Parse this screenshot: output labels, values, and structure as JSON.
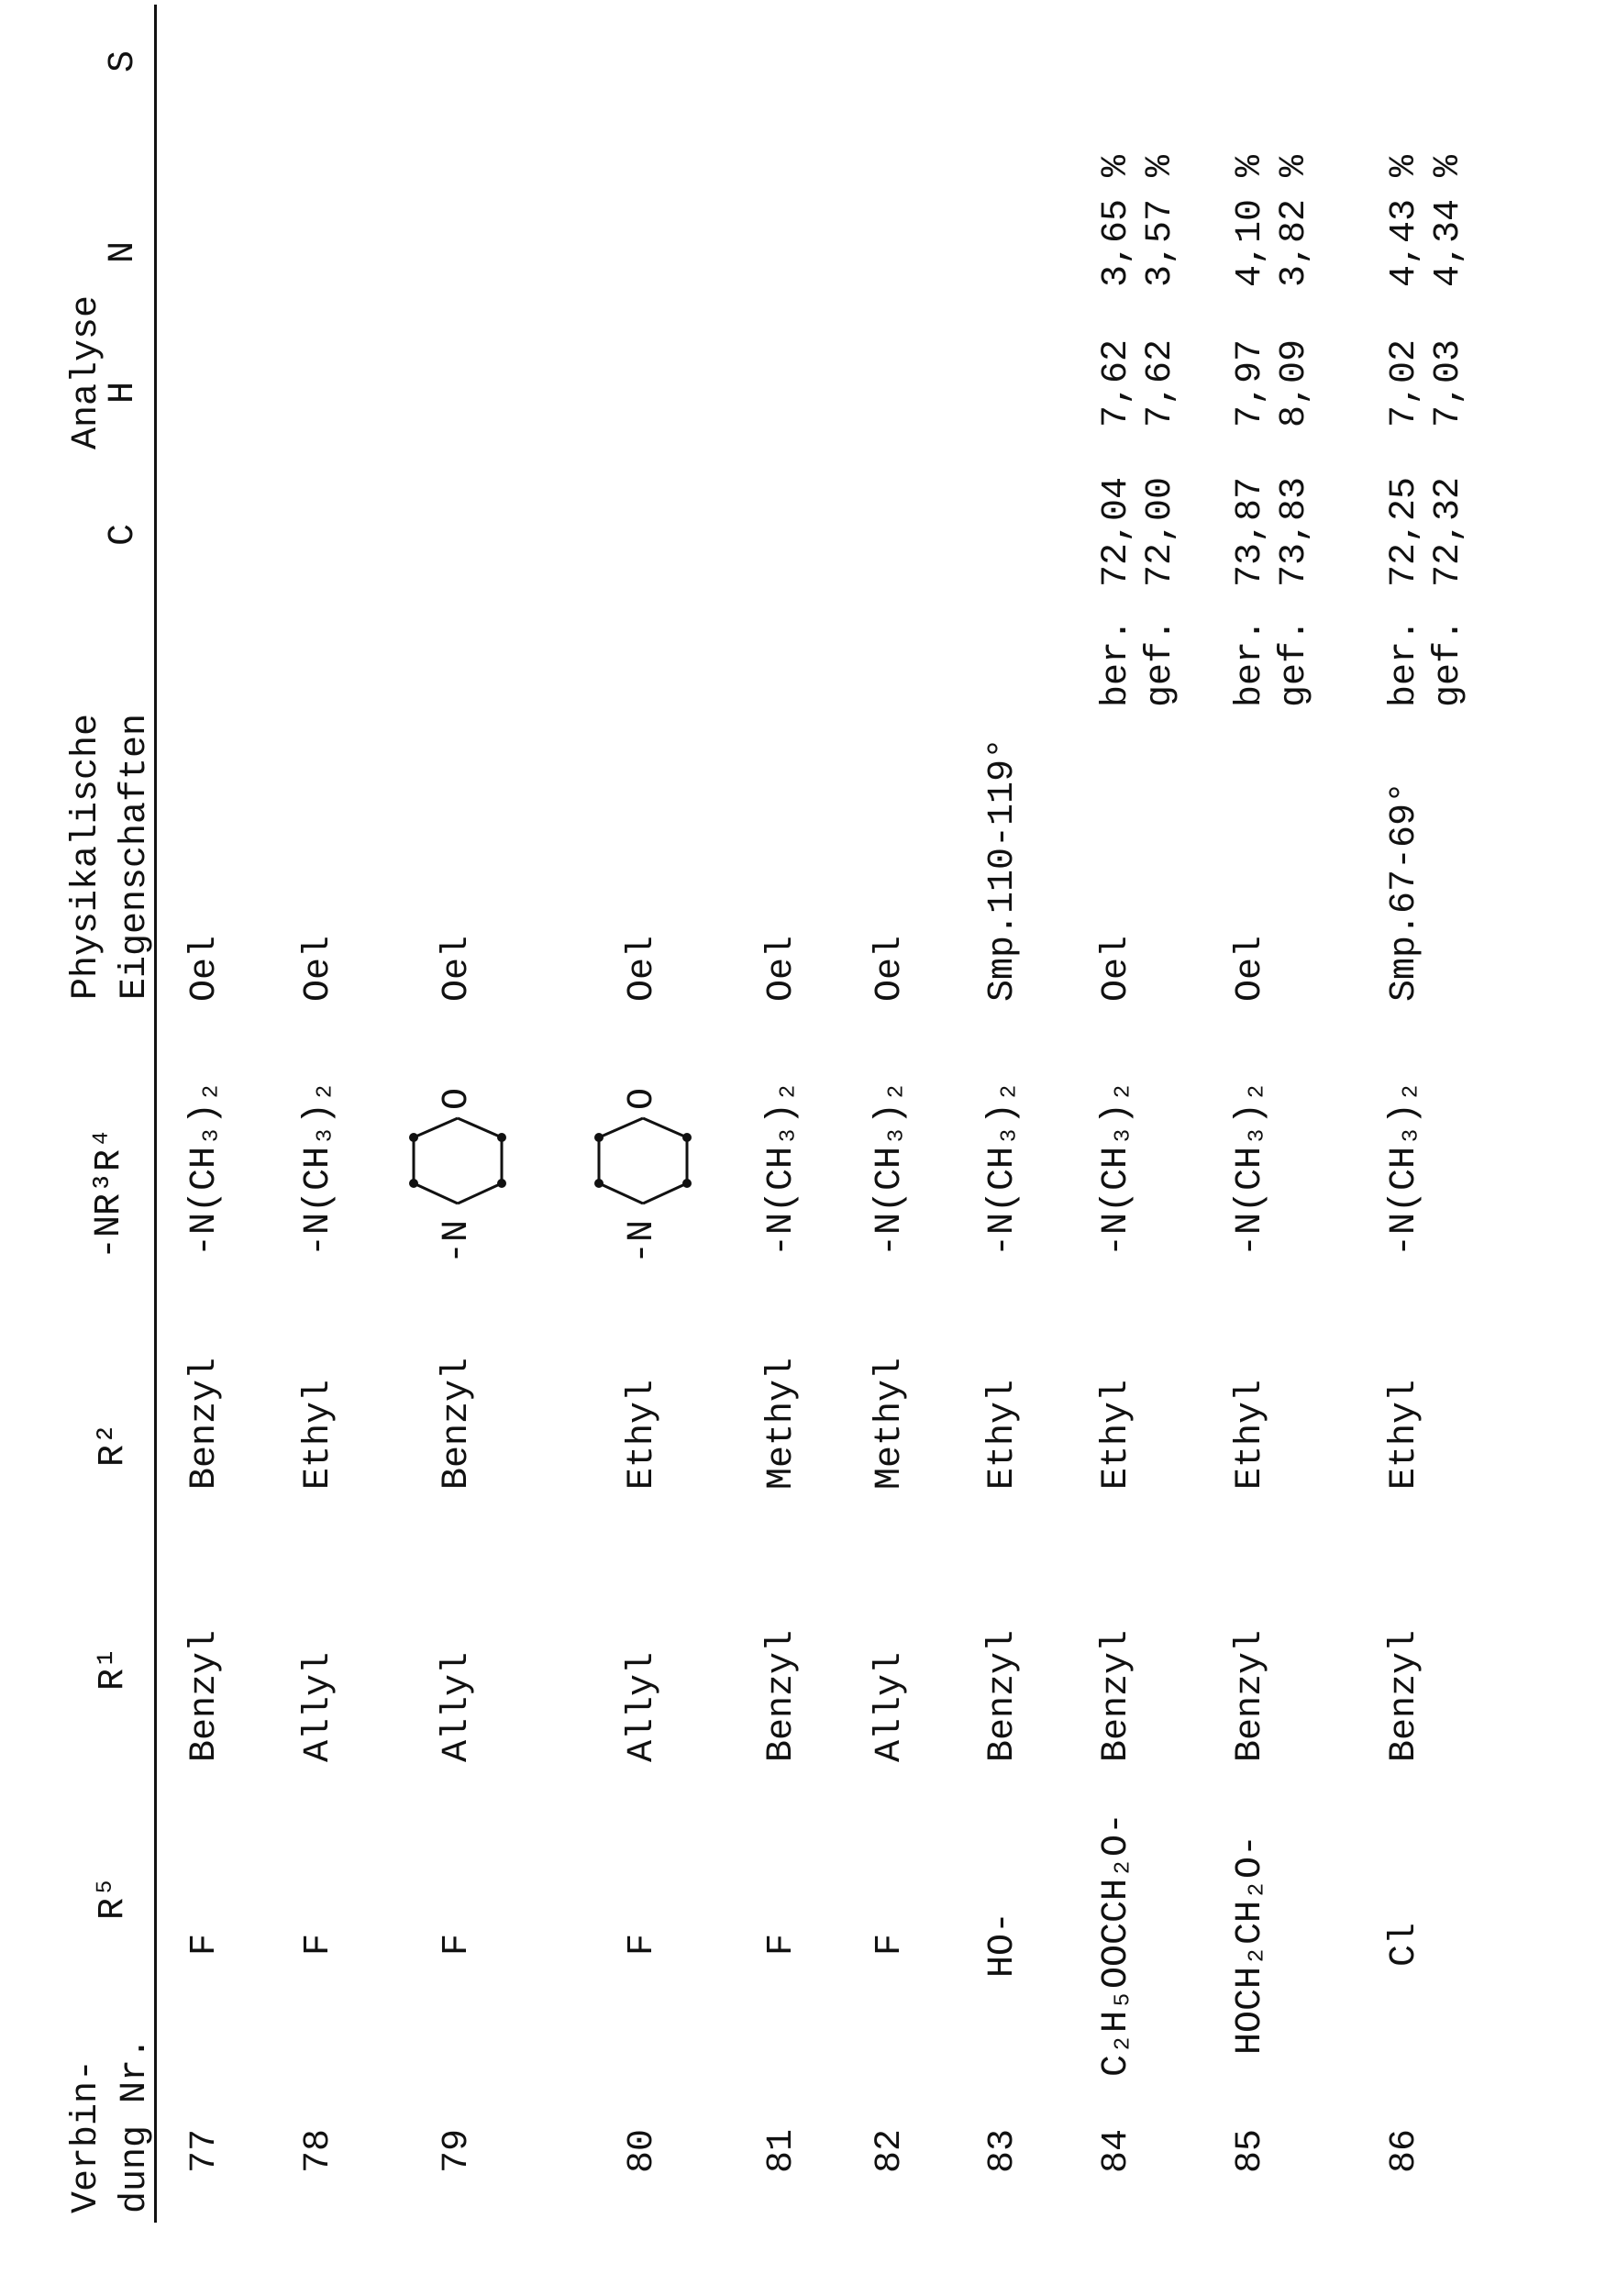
{
  "header": {
    "nr_line1": "Verbin-",
    "nr_line2": "dung Nr.",
    "r5": "R⁵",
    "r1": "R¹",
    "r2": "R²",
    "nr3r4": "-NR³R⁴",
    "phys_line1": "Physikalische",
    "phys_line2": "Eigenschaften",
    "analyse": "Analyse",
    "c": "C",
    "h": "H",
    "n": "N",
    "s": "S"
  },
  "rows": [
    {
      "nr": "77",
      "r5": "F",
      "r1": "Benzyl",
      "r2": "Benzyl",
      "nr3r4": "-N(CH₃)₂",
      "phys": "Oel"
    },
    {
      "nr": "78",
      "r5": "F",
      "r1": "Allyl",
      "r2": "Ethyl",
      "nr3r4": "-N(CH₃)₂",
      "phys": "Oel"
    },
    {
      "nr": "79",
      "r5": "F",
      "r1": "Allyl",
      "r2": "Benzyl",
      "nr3r4_structure": "morpholine-ring",
      "ring_n": "-N",
      "ring_o": "O",
      "phys": "Oel"
    },
    {
      "nr": "80",
      "r5": "F",
      "r1": "Allyl",
      "r2": "Ethyl",
      "nr3r4_structure": "morpholine-ring",
      "ring_n": "-N",
      "ring_o": "O",
      "phys": "Oel"
    },
    {
      "nr": "81",
      "r5": "F",
      "r1": "Benzyl",
      "r2": "Methyl",
      "nr3r4": "-N(CH₃)₂",
      "phys": "Oel"
    },
    {
      "nr": "82",
      "r5": "F",
      "r1": "Allyl",
      "r2": "Methyl",
      "nr3r4": "-N(CH₃)₂",
      "phys": "Oel"
    },
    {
      "nr": "83",
      "r5": "HO-",
      "r1": "Benzyl",
      "r2": "Ethyl",
      "nr3r4": "-N(CH₃)₂",
      "phys": "Smp.110-119°"
    },
    {
      "nr": "84",
      "r5": "C₂H₅OOCCH₂O-",
      "r1": "Benzyl",
      "r2": "Ethyl",
      "nr3r4": "-N(CH₃)₂",
      "phys": "Oel",
      "analysis": [
        {
          "label": "ber.",
          "c": "72,04",
          "h": "7,62",
          "n": "3,65 %"
        },
        {
          "label": "gef.",
          "c": "72,00",
          "h": "7,62",
          "n": "3,57 %"
        }
      ]
    },
    {
      "nr": "85",
      "r5": "HOCH₂CH₂O-",
      "r1": "Benzyl",
      "r2": "Ethyl",
      "nr3r4": "-N(CH₃)₂",
      "phys": "Oel",
      "analysis": [
        {
          "label": "ber.",
          "c": "73,87",
          "h": "7,97",
          "n": "4,10 %"
        },
        {
          "label": "gef.",
          "c": "73,83",
          "h": "8,09",
          "n": "3,82 %"
        }
      ]
    },
    {
      "nr": "86",
      "r5": "Cl",
      "r1": "Benzyl",
      "r2": "Ethyl",
      "nr3r4": "-N(CH₃)₂",
      "phys": "Smp.67-69°",
      "analysis": [
        {
          "label": "ber.",
          "c": "72,25",
          "h": "7,02",
          "n": "4,43 %"
        },
        {
          "label": "gef.",
          "c": "72,32",
          "h": "7,03",
          "n": "4,34 %"
        }
      ]
    }
  ]
}
